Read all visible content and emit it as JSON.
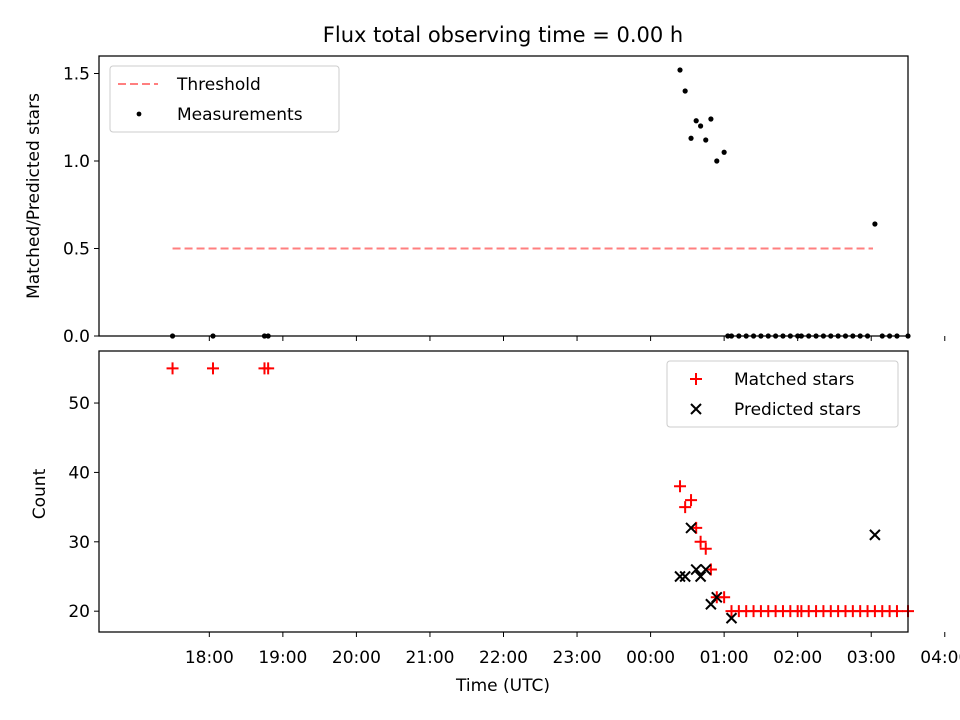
{
  "chart_data": [
    {
      "type": "scatter",
      "title": "Flux total observing time = 0.00 h",
      "ylabel": "Matched/Predicted stars",
      "xlabel": "",
      "ylim": [
        0,
        1.6
      ],
      "xlim": [
        -0.5,
        10.5
      ],
      "x_unit": "hours after 17:00 UTC",
      "yticks": [
        0.0,
        0.5,
        1.0,
        1.5
      ],
      "ytick_labels": [
        "0.0",
        "0.5",
        "1.0",
        "1.5"
      ],
      "legend": {
        "position": "top-left",
        "entries": [
          "Threshold",
          "Measurements"
        ]
      },
      "threshold": {
        "name": "Threshold",
        "value": 0.5,
        "x": [
          0.5,
          10.5
        ],
        "color": "#ff7f7f"
      },
      "series": [
        {
          "name": "Measurements",
          "color": "#000000",
          "x": [
            0.5,
            1.05,
            1.75,
            1.8,
            7.4,
            7.47,
            7.55,
            7.62,
            7.68,
            7.75,
            7.82,
            7.9,
            8.0,
            8.1,
            8.05,
            8.2,
            8.3,
            8.4,
            8.5,
            8.6,
            8.7,
            8.8,
            8.9,
            9.0,
            9.05,
            9.15,
            9.25,
            9.35,
            9.45,
            9.55,
            9.65,
            9.75,
            9.85,
            9.95,
            10.05,
            10.15,
            10.25,
            10.35,
            10.5
          ],
          "y": [
            0,
            0,
            0,
            0,
            1.52,
            1.4,
            1.13,
            1.23,
            1.2,
            1.12,
            1.24,
            1.0,
            1.05,
            0,
            0,
            0,
            0,
            0,
            0,
            0,
            0,
            0,
            0,
            0,
            0,
            0,
            0,
            0,
            0,
            0,
            0,
            0,
            0,
            0,
            0.64,
            0,
            0,
            0,
            0
          ]
        }
      ]
    },
    {
      "type": "scatter",
      "title": "",
      "ylabel": "Count",
      "xlabel": "Time (UTC)",
      "ylim": [
        17,
        57.5
      ],
      "xlim": [
        -0.5,
        10.5
      ],
      "x_unit": "hours after 17:00 UTC",
      "yticks": [
        20,
        30,
        40,
        50
      ],
      "ytick_labels": [
        "20",
        "30",
        "40",
        "50"
      ],
      "xticks": [
        1,
        2,
        3,
        4,
        5,
        6,
        7,
        8,
        9,
        10,
        11
      ],
      "xtick_labels": [
        "18:00",
        "19:00",
        "20:00",
        "21:00",
        "22:00",
        "23:00",
        "00:00",
        "01:00",
        "02:00",
        "03:00",
        "04:00"
      ],
      "legend": {
        "position": "top-right",
        "entries": [
          "Matched stars",
          "Predicted stars"
        ]
      },
      "series": [
        {
          "name": "Matched stars",
          "marker": "plus",
          "color": "#ff0000",
          "x": [
            0.5,
            1.05,
            1.75,
            1.8,
            7.4,
            7.47,
            7.55,
            7.62,
            7.68,
            7.75,
            7.82,
            7.9,
            8.0,
            8.1,
            8.2,
            8.3,
            8.4,
            8.5,
            8.6,
            8.7,
            8.8,
            8.9,
            9.0,
            9.05,
            9.15,
            9.25,
            9.35,
            9.45,
            9.55,
            9.65,
            9.75,
            9.85,
            9.95,
            10.05,
            10.15,
            10.25,
            10.35,
            10.5
          ],
          "y": [
            55,
            55,
            55,
            55,
            38,
            35,
            36,
            32,
            30,
            29,
            26,
            22,
            22,
            20,
            20,
            20,
            20,
            20,
            20,
            20,
            20,
            20,
            20,
            20,
            20,
            20,
            20,
            20,
            20,
            20,
            20,
            20,
            20,
            20,
            20,
            20,
            20,
            20
          ]
        },
        {
          "name": "Predicted stars",
          "marker": "x",
          "color": "#000000",
          "x": [
            7.4,
            7.47,
            7.55,
            7.62,
            7.68,
            7.75,
            7.82,
            7.9,
            8.1,
            10.05
          ],
          "y": [
            25,
            25,
            32,
            26,
            25,
            26,
            21,
            22,
            19,
            31
          ]
        }
      ]
    }
  ]
}
